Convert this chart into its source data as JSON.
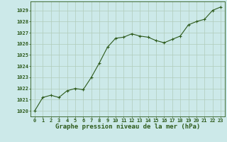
{
  "x": [
    0,
    1,
    2,
    3,
    4,
    5,
    6,
    7,
    8,
    9,
    10,
    11,
    12,
    13,
    14,
    15,
    16,
    17,
    18,
    19,
    20,
    21,
    22,
    23
  ],
  "y": [
    1020.0,
    1021.2,
    1021.4,
    1021.2,
    1021.8,
    1022.0,
    1021.9,
    1023.0,
    1024.3,
    1025.7,
    1026.5,
    1026.6,
    1026.9,
    1026.7,
    1026.6,
    1026.3,
    1026.1,
    1026.4,
    1026.7,
    1027.7,
    1028.0,
    1028.2,
    1029.0,
    1029.3
  ],
  "line_color": "#2d5a1b",
  "marker": "+",
  "marker_size": 3.5,
  "bg_color": "#cce9e9",
  "grid_color": "#b0ccbb",
  "xlabel": "Graphe pression niveau de la mer (hPa)",
  "ylim": [
    1019.5,
    1029.8
  ],
  "xlim": [
    -0.5,
    23.5
  ],
  "yticks": [
    1020,
    1021,
    1022,
    1023,
    1024,
    1025,
    1026,
    1027,
    1028,
    1029
  ],
  "xticks": [
    0,
    1,
    2,
    3,
    4,
    5,
    6,
    7,
    8,
    9,
    10,
    11,
    12,
    13,
    14,
    15,
    16,
    17,
    18,
    19,
    20,
    21,
    22,
    23
  ],
  "tick_fontsize": 5.0,
  "xlabel_fontsize": 6.5,
  "line_width": 0.8,
  "marker_ew": 0.8
}
